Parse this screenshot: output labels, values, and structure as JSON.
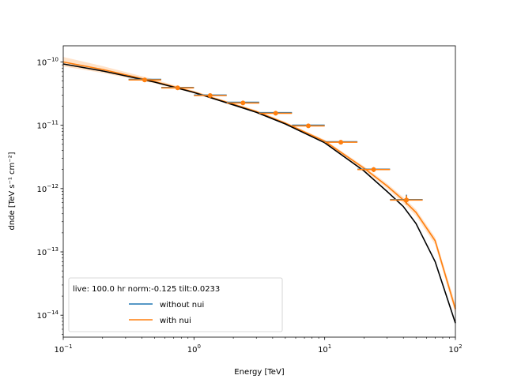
{
  "chart_data": {
    "type": "scatter",
    "title": "",
    "xlabel": "Energy [TeV]",
    "ylabel": "dnde [TeV s⁻¹ cm⁻²]",
    "xscale": "log",
    "yscale": "log",
    "xlim": [
      0.1,
      100
    ],
    "ylim": [
      4.5e-15,
      1.8e-10
    ],
    "x_ticks": [
      {
        "value": 0.1,
        "base": "10",
        "exp": "−1"
      },
      {
        "value": 1,
        "base": "10",
        "exp": "0"
      },
      {
        "value": 10,
        "base": "10",
        "exp": "1"
      },
      {
        "value": 100,
        "base": "10",
        "exp": "2"
      }
    ],
    "y_ticks": [
      {
        "value": 1e-14,
        "base": "10",
        "exp": "−14"
      },
      {
        "value": 1e-13,
        "base": "10",
        "exp": "−13"
      },
      {
        "value": 1e-12,
        "base": "10",
        "exp": "−12"
      },
      {
        "value": 1e-11,
        "base": "10",
        "exp": "−11"
      },
      {
        "value": 1e-10,
        "base": "10",
        "exp": "−10"
      }
    ],
    "model_curve": {
      "color": "#000000",
      "x": [
        0.1,
        0.2,
        0.5,
        1,
        2,
        3,
        5,
        10,
        20,
        30,
        40,
        50,
        70,
        100
      ],
      "y": [
        9.3e-11,
        7.2e-11,
        4.8e-11,
        3.3e-11,
        2.1e-11,
        1.6e-11,
        1.05e-11,
        5.3e-12,
        1.9e-12,
        9e-13,
        5.2e-13,
        2.8e-13,
        7e-14,
        7.5e-15
      ]
    },
    "fit_band": {
      "color": "#ff7f0e",
      "x": [
        0.1,
        0.2,
        0.5,
        1,
        2,
        3,
        5,
        10,
        20,
        30,
        40,
        50,
        70,
        100
      ],
      "y": [
        1e-10,
        7.6e-11,
        4.9e-11,
        3.35e-11,
        2.15e-11,
        1.65e-11,
        1.08e-11,
        5.6e-12,
        2.1e-12,
        1.1e-12,
        6.6e-13,
        4.2e-13,
        1.5e-13,
        1.25e-14
      ],
      "lower": [
        8.5e-11,
        6.7e-11,
        4.6e-11,
        3.2e-11,
        2.05e-11,
        1.58e-11,
        1.03e-11,
        5.3e-12,
        1.95e-12,
        1e-12,
        5.9e-13,
        3.7e-13,
        1.3e-13,
        1.05e-14
      ],
      "upper": [
        1.2e-10,
        8.6e-11,
        5.3e-11,
        3.5e-11,
        2.25e-11,
        1.73e-11,
        1.13e-11,
        5.9e-12,
        2.25e-12,
        1.2e-12,
        7.3e-13,
        4.7e-13,
        1.7e-13,
        1.5e-14
      ]
    },
    "series": [
      {
        "name": "without nui",
        "color": "#1f77b4",
        "x": [
          0.42,
          0.75,
          1.33,
          2.37,
          4.22,
          7.5,
          13.3,
          23.7,
          42.2
        ],
        "y": [
          5.3e-11,
          3.95e-11,
          3e-11,
          2.3e-11,
          1.58e-11,
          1e-11,
          5.5e-12,
          2.02e-12,
          6.7e-13
        ],
        "xmin": [
          0.316,
          0.562,
          1.0,
          1.78,
          3.16,
          5.62,
          10.0,
          17.8,
          31.6
        ],
        "xmax": [
          0.562,
          1.0,
          1.78,
          3.16,
          5.62,
          10.0,
          17.8,
          31.6,
          56.2
        ],
        "ylo": [
          5e-11,
          3.75e-11,
          2.85e-11,
          2.2e-11,
          1.52e-11,
          9.6e-12,
          5.2e-12,
          1.88e-12,
          5.8e-13
        ],
        "yhi": [
          5.6e-11,
          4.15e-11,
          3.15e-11,
          2.4e-11,
          1.65e-11,
          1.05e-11,
          5.8e-12,
          2.16e-12,
          8e-13
        ]
      },
      {
        "name": "with nui",
        "color": "#ff7f0e",
        "x": [
          0.42,
          0.75,
          1.33,
          2.37,
          4.22,
          7.5,
          13.3,
          23.7,
          42.2
        ],
        "y": [
          5.2e-11,
          3.9e-11,
          2.95e-11,
          2.25e-11,
          1.55e-11,
          9.8e-12,
          5.4e-12,
          2e-12,
          6.6e-13
        ],
        "xmin": [
          0.316,
          0.562,
          1.0,
          1.78,
          3.16,
          5.62,
          10.0,
          17.8,
          31.6
        ],
        "xmax": [
          0.562,
          1.0,
          1.78,
          3.16,
          5.62,
          10.0,
          17.8,
          31.6,
          56.2
        ],
        "ylo": [
          4.8e-11,
          3.6e-11,
          2.75e-11,
          2.1e-11,
          1.46e-11,
          9.2e-12,
          5e-12,
          1.82e-12,
          5.6e-13
        ],
        "yhi": [
          5.6e-11,
          4.2e-11,
          3.15e-11,
          2.4e-11,
          1.65e-11,
          1.04e-11,
          5.8e-12,
          2.18e-12,
          7.8e-13
        ]
      }
    ],
    "legend": {
      "placement": "lower-left",
      "title": "live: 100.0 hr norm:-0.125 tilt:0.0233",
      "entries": [
        "without nui",
        "with nui"
      ]
    }
  }
}
